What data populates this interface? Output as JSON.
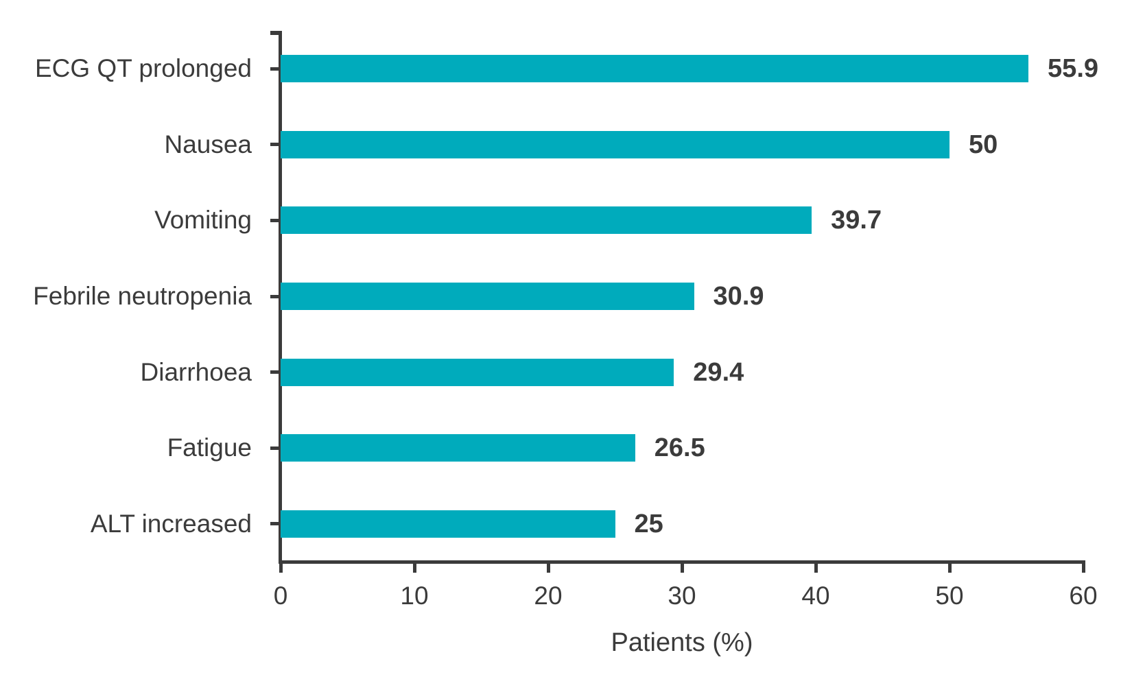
{
  "chart_data": {
    "type": "bar",
    "orientation": "horizontal",
    "title": "",
    "categories": [
      "ECG QT prolonged",
      "Nausea",
      "Vomiting",
      "Febrile neutropenia",
      "Diarrhoea",
      "Fatigue",
      "ALT increased"
    ],
    "values": [
      55.9,
      50,
      39.7,
      30.9,
      29.4,
      26.5,
      25
    ],
    "value_labels": [
      "55.9",
      "50",
      "39.7",
      "30.9",
      "29.4",
      "26.5",
      "25"
    ],
    "xlabel": "Patients (%)",
    "ylabel": "",
    "xlim": [
      0,
      60
    ],
    "xticks": [
      0,
      10,
      20,
      30,
      40,
      50,
      60
    ],
    "xtick_labels": [
      "0",
      "10",
      "20",
      "30",
      "40",
      "50",
      "60"
    ],
    "grid": false,
    "legend": null,
    "bar_color": "#00ABBC",
    "axis_color": "#3B3B3B",
    "text_color": "#3B3B3B"
  }
}
